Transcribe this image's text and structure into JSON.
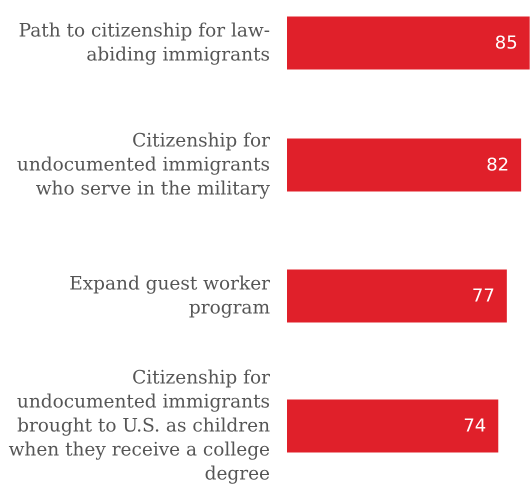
{
  "chart_data": {
    "type": "bar",
    "orientation": "horizontal",
    "categories": [
      [
        "Path to citizenship for law-",
        "abiding immigrants"
      ],
      [
        "Citizenship for",
        "undocumented immigrants",
        "who serve in the military"
      ],
      [
        "Expand guest worker",
        "program"
      ],
      [
        "Citizenship for",
        "undocumented immigrants",
        "brought to U.S. as children",
        "when they receive a college",
        "degree"
      ]
    ],
    "values": [
      85,
      82,
      77,
      74
    ],
    "data_labels": [
      "85",
      "82",
      "77",
      "74"
    ],
    "title": "",
    "xlabel": "",
    "ylabel": "",
    "xlim": [
      0,
      100
    ],
    "bar_color": "#E0202A",
    "label_color": "#555555",
    "value_label_color": "#FFFFFF",
    "grid": false,
    "legend": "none"
  }
}
